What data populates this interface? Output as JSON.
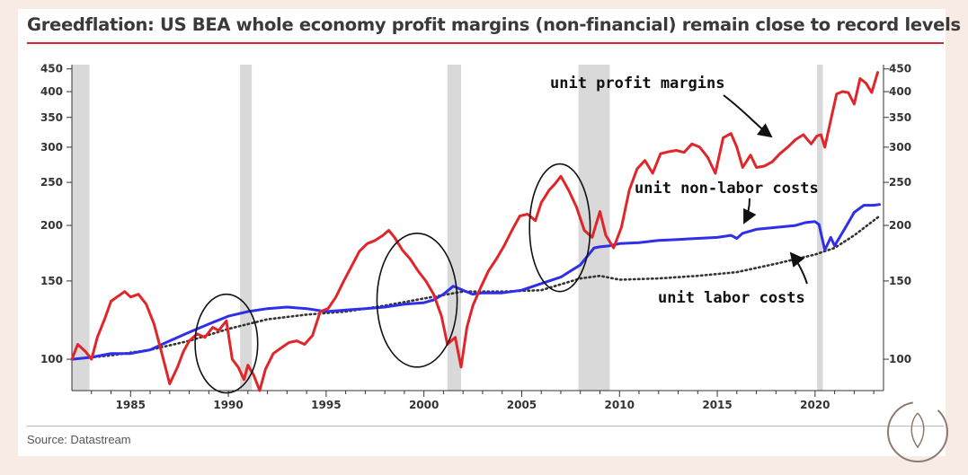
{
  "title": "Greedflation: US BEA whole economy profit margins (non-financial) remain close to record levels",
  "source": "Source: Datastream",
  "colors": {
    "accent": "#d7282f",
    "profit": "#e0262b",
    "nonlabor": "#2f2fe8",
    "labor": "#333333",
    "recession": "#d9d9d9"
  },
  "chart_data": {
    "type": "line",
    "title": "Greedflation: US BEA whole economy profit margins (non-financial) remain close to record levels",
    "xlabel": "",
    "ylabel": "",
    "y_scale": "log",
    "xlim": [
      1982.0,
      2023.5
    ],
    "ylim": [
      85,
      460
    ],
    "x_ticks": [
      1985,
      1990,
      1995,
      2000,
      2005,
      2010,
      2015,
      2020
    ],
    "y_ticks": [
      100,
      150,
      200,
      250,
      300,
      350,
      400,
      450
    ],
    "recessions": [
      [
        1982.0,
        1982.9
      ],
      [
        1990.6,
        1991.2
      ],
      [
        2001.2,
        2001.9
      ],
      [
        2007.9,
        2009.5
      ],
      [
        2020.1,
        2020.4
      ]
    ],
    "series": [
      {
        "name": "unit profit margins",
        "style": "solid",
        "x": [
          1982.0,
          1982.3,
          1982.7,
          1983.0,
          1983.3,
          1983.7,
          1984.0,
          1984.3,
          1984.7,
          1985.0,
          1985.4,
          1985.8,
          1986.2,
          1986.6,
          1987.0,
          1987.4,
          1987.7,
          1988.0,
          1988.4,
          1988.8,
          1989.2,
          1989.5,
          1989.9,
          1990.2,
          1990.5,
          1990.8,
          1991.0,
          1991.3,
          1991.6,
          1991.9,
          1992.3,
          1992.7,
          1993.1,
          1993.5,
          1993.9,
          1994.3,
          1994.7,
          1995.1,
          1995.5,
          1995.9,
          1996.3,
          1996.7,
          1997.1,
          1997.5,
          1997.9,
          1998.2,
          1998.5,
          1998.9,
          1999.3,
          1999.7,
          2000.1,
          2000.5,
          2000.9,
          2001.2,
          2001.6,
          2001.9,
          2002.2,
          2002.5,
          2002.9,
          2003.3,
          2003.7,
          2004.1,
          2004.5,
          2004.9,
          2005.3,
          2005.7,
          2006.0,
          2006.4,
          2006.7,
          2007.0,
          2007.4,
          2007.8,
          2008.2,
          2008.6,
          2009.0,
          2009.3,
          2009.7,
          2010.1,
          2010.5,
          2010.9,
          2011.3,
          2011.7,
          2012.1,
          2012.5,
          2012.9,
          2013.3,
          2013.7,
          2014.1,
          2014.5,
          2014.9,
          2015.3,
          2015.7,
          2016.0,
          2016.3,
          2016.7,
          2017.0,
          2017.4,
          2017.8,
          2018.2,
          2018.6,
          2019.0,
          2019.4,
          2019.8,
          2020.1,
          2020.3,
          2020.5,
          2020.8,
          2021.1,
          2021.4,
          2021.7,
          2022.0,
          2022.3,
          2022.6,
          2022.9,
          2023.2
        ],
        "values": [
          100,
          108,
          104,
          100,
          112,
          124,
          135,
          138,
          142,
          138,
          140,
          133,
          120,
          103,
          88,
          96,
          104,
          110,
          114,
          112,
          118,
          116,
          122,
          100,
          96,
          90,
          97,
          92,
          85,
          95,
          103,
          106,
          109,
          110,
          108,
          113,
          128,
          130,
          138,
          150,
          162,
          175,
          182,
          185,
          190,
          195,
          188,
          176,
          168,
          158,
          150,
          140,
          125,
          108,
          112,
          96,
          118,
          132,
          145,
          158,
          168,
          180,
          195,
          210,
          212,
          205,
          225,
          240,
          248,
          258,
          240,
          220,
          195,
          188,
          215,
          190,
          178,
          198,
          240,
          268,
          280,
          262,
          290,
          293,
          295,
          292,
          305,
          300,
          285,
          262,
          315,
          322,
          300,
          270,
          288,
          270,
          272,
          278,
          290,
          300,
          312,
          320,
          305,
          318,
          320,
          300,
          345,
          395,
          400,
          398,
          375,
          428,
          418,
          398,
          442
        ]
      },
      {
        "name": "unit non-labor costs",
        "style": "solid",
        "x": [
          1982.0,
          1983.0,
          1984.0,
          1985.0,
          1986.0,
          1987.0,
          1988.0,
          1989.0,
          1990.0,
          1991.0,
          1992.0,
          1993.0,
          1994.0,
          1995.0,
          1996.0,
          1997.0,
          1998.0,
          1999.0,
          2000.0,
          2000.5,
          2001.0,
          2001.5,
          2002.0,
          2002.5,
          2003.0,
          2004.0,
          2005.0,
          2006.0,
          2007.0,
          2008.0,
          2008.7,
          2009.0,
          2009.5,
          2010.0,
          2011.0,
          2012.0,
          2013.0,
          2014.0,
          2015.0,
          2015.7,
          2016.0,
          2016.3,
          2017.0,
          2018.0,
          2019.0,
          2019.5,
          2020.0,
          2020.2,
          2020.5,
          2020.8,
          2021.0,
          2021.5,
          2022.0,
          2022.5,
          2023.0,
          2023.3
        ],
        "values": [
          100,
          101,
          103,
          103,
          105,
          110,
          115,
          120,
          125,
          128,
          130,
          131,
          130,
          128,
          129,
          130,
          131,
          133,
          134,
          136,
          140,
          146,
          143,
          140,
          141,
          141,
          143,
          148,
          153,
          163,
          178,
          179,
          180,
          182,
          183,
          185,
          186,
          187,
          188,
          190,
          187,
          192,
          196,
          198,
          200,
          203,
          204,
          201,
          176,
          188,
          180,
          196,
          214,
          222,
          222,
          223
        ]
      },
      {
        "name": "unit labor costs",
        "style": "dotted",
        "x": [
          1982.0,
          1984.0,
          1986.0,
          1988.0,
          1990.0,
          1992.0,
          1994.0,
          1996.0,
          1998.0,
          2000.0,
          2002.0,
          2004.0,
          2006.0,
          2008.0,
          2009.0,
          2010.0,
          2012.0,
          2014.0,
          2016.0,
          2018.0,
          2020.0,
          2021.0,
          2022.0,
          2023.3
        ],
        "values": [
          100,
          102,
          105,
          110,
          117,
          123,
          126,
          128,
          132,
          137,
          142,
          142,
          143,
          152,
          154,
          151,
          152,
          154,
          157,
          164,
          172,
          178,
          190,
          210
        ]
      }
    ],
    "annotations": [
      {
        "text": "unit profit margins",
        "target_series": "unit profit margins"
      },
      {
        "text": "unit non-labor costs",
        "target_series": "unit non-labor costs"
      },
      {
        "text": "unit labor costs",
        "target_series": "unit labor costs"
      }
    ],
    "highlight_ellipses": [
      {
        "x_range": [
          1988.3,
          1991.5
        ],
        "y_range": [
          84,
          140
        ]
      },
      {
        "x_range": [
          1997.6,
          2001.7
        ],
        "y_range": [
          96,
          192
        ]
      },
      {
        "x_range": [
          2005.4,
          2008.5
        ],
        "y_range": [
          142,
          275
        ]
      }
    ]
  }
}
